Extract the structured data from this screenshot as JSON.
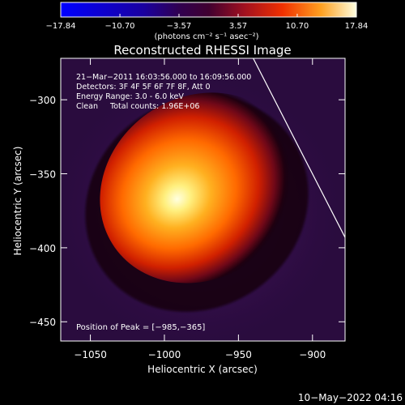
{
  "chart_data": {
    "type": "heatmap",
    "title": "Reconstructed RHESSI Image",
    "xlabel": "Heliocentric X (arcsec)",
    "ylabel": "Heliocentric Y (arcsec)",
    "xlim": [
      -1070,
      -878
    ],
    "ylim": [
      -463,
      -272
    ],
    "xticks": [
      -1050,
      -1000,
      -950,
      -900
    ],
    "yticks": [
      -300,
      -350,
      -400,
      -450
    ],
    "colorbar": {
      "range": [
        -17.84,
        17.84
      ],
      "tick_labels": [
        "-17.84",
        "-10.70",
        "-3.57",
        "3.57",
        "10.70",
        "17.84"
      ],
      "label": "(photons cm⁻² s⁻¹ asec⁻²)",
      "colormap": [
        "#0000ff",
        "#200040",
        "#3a1050",
        "#8a1040",
        "#e02000",
        "#ff7000",
        "#ffd040",
        "#ffffe0"
      ]
    },
    "source": {
      "center": [
        -985,
        -365
      ],
      "peak_value": 17.84,
      "rotation_deg": -35
    },
    "limb_line": [
      [
        -940,
        -272
      ],
      [
        -878,
        -393
      ]
    ],
    "annotations": [
      "21-Mar-2011 16:03:56.000 to 16:09:56.000",
      "Detectors: 3F 4F 5F 6F 7F 8F, Att 0",
      "Energy Range: 3.0 - 6.0 keV",
      "Clean     Total counts: 1.96E+06"
    ],
    "peak_label": "Position of Peak = [-985,-365]"
  },
  "footer": {
    "timestamp": "10-May-2022 04:16"
  }
}
